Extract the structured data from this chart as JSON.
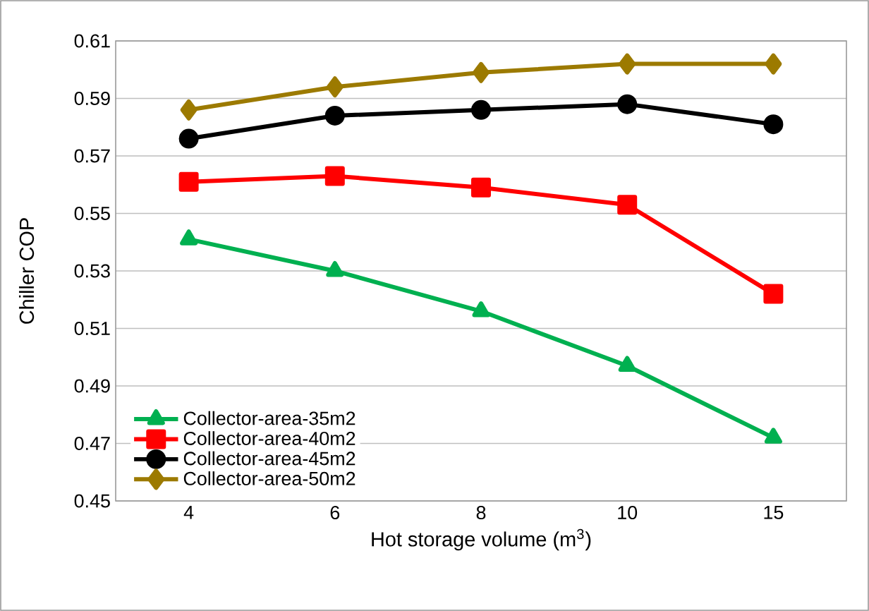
{
  "chart_data": {
    "type": "line",
    "xlabel": "Hot storage volume (m$^{3}$)",
    "ylabel": "Chiller COP",
    "categories": [
      "4",
      "6",
      "8",
      "10",
      "15"
    ],
    "series": [
      {
        "name": "Collector-area-35m2",
        "color": "#00b050",
        "marker": "triangle",
        "values": [
          0.541,
          0.53,
          0.516,
          0.497,
          0.472
        ]
      },
      {
        "name": "Collector-area-40m2",
        "color": "#ff0000",
        "marker": "square",
        "values": [
          0.561,
          0.563,
          0.559,
          0.553,
          0.522
        ]
      },
      {
        "name": "Collector-area-45m2",
        "color": "#000000",
        "marker": "circle",
        "values": [
          0.576,
          0.584,
          0.586,
          0.588,
          0.581
        ]
      },
      {
        "name": "Collector-area-50m2",
        "color": "#9c7a00",
        "marker": "diamond",
        "values": [
          0.586,
          0.594,
          0.599,
          0.602,
          0.602
        ]
      }
    ],
    "ylim": [
      0.45,
      0.61
    ],
    "yticks": [
      0.45,
      0.47,
      0.49,
      0.51,
      0.53,
      0.55,
      0.57,
      0.59,
      0.61
    ],
    "grid": "y",
    "legend": "bottom left",
    "line_style": "solid"
  }
}
